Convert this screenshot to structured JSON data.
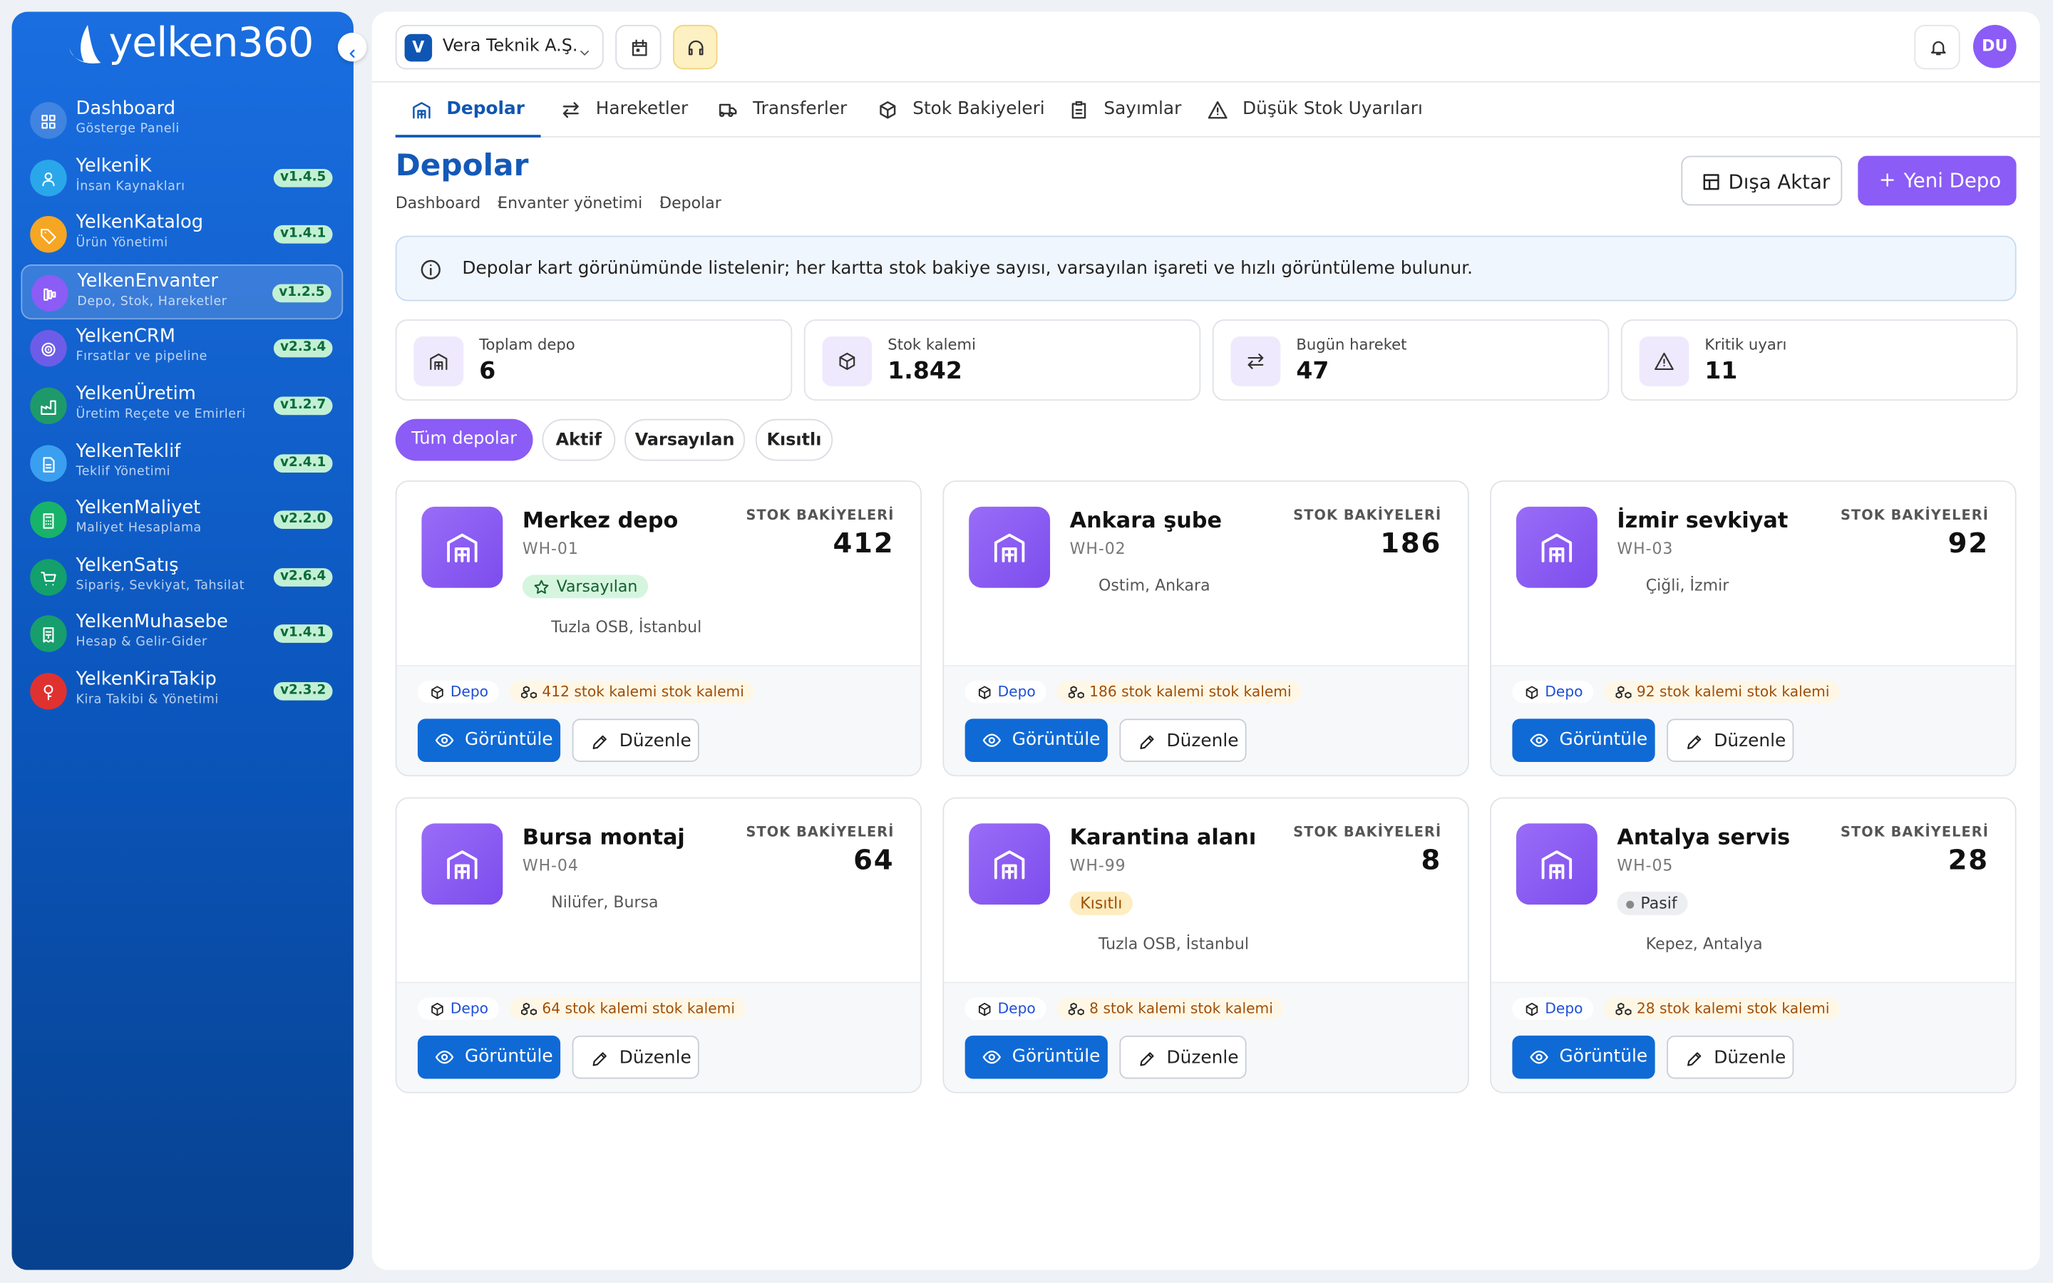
{
  "sidebar": {
    "logo": "yelken360",
    "apps": [
      {
        "name": "Dashboard",
        "subtitle": "Gösterge Paneli"
      },
      {
        "name": "YelkenİK",
        "subtitle": "İnsan Kaynakları",
        "version": "v1.4.5"
      },
      {
        "name": "YelkenKatalog",
        "subtitle": "Ürün Yönetimi",
        "version": "v1.4.1"
      },
      {
        "name": "YelkenEnvanter",
        "subtitle": "Depo, Stok, Hareketler",
        "version": "v1.2.5"
      },
      {
        "name": "YelkenCRM",
        "subtitle": "Fırsatlar ve pipeline",
        "version": "v2.3.4"
      },
      {
        "name": "YelkenÜretim",
        "subtitle": "Üretim Reçete ve Emirleri",
        "version": "v1.2.7"
      },
      {
        "name": "YelkenTeklif",
        "subtitle": "Teklif Yönetimi",
        "version": "v2.4.1"
      },
      {
        "name": "YelkenMaliyet",
        "subtitle": "Maliyet Hesaplama",
        "version": "v2.2.0"
      },
      {
        "name": "YelkenSatış",
        "subtitle": "Sipariş, Sevkiyat, Tahsilat",
        "version": "v2.6.4"
      },
      {
        "name": "YelkenMuhasebe",
        "subtitle": "Hesap & Gelir-Gider",
        "version": "v1.4.1"
      },
      {
        "name": "YelkenKiraTakip",
        "subtitle": "Kira Takibi & Yönetimi",
        "version": "v2.3.2"
      }
    ]
  },
  "topbar": {
    "company_initial": "V",
    "company": "Vera Teknik A.Ş.",
    "user_initials": "DU"
  },
  "tabs": [
    "Depolar",
    "Hareketler",
    "Transferler",
    "Stok Bakiyeleri",
    "Sayımlar",
    "Düşük Stok Uyarıları"
  ],
  "header": {
    "title": "Depolar",
    "breadcrumb": [
      "Dashboard",
      "Envanter yönetimi",
      "Depolar"
    ],
    "actions": [
      "Dışa Aktar",
      "Yeni Depo"
    ],
    "info": "Depolar kart görünümünde listelenir; her kartta stok bakiye sayısı, varsayılan işareti ve hızlı görüntüleme bulunur."
  },
  "stats": [
    {
      "label": "Toplam depo",
      "value": "6"
    },
    {
      "label": "Stok kalemi",
      "value": "1.842"
    },
    {
      "label": "Bugün hareket",
      "value": "47"
    },
    {
      "label": "Kritik uyarı",
      "value": "11"
    }
  ],
  "filters": [
    "Tüm depolar",
    "Aktif",
    "Varsayılan",
    "Kısıtlı"
  ],
  "card_labels": {
    "stock_title": "STOK BAKİYELERİ",
    "type": "Depo",
    "view": "Görüntüle",
    "edit": "Düzenle"
  },
  "warehouses": [
    {
      "name": "Merkez depo",
      "code": "WH-01",
      "badge": "Varsayılan",
      "location": "Tuzla OSB, İstanbul",
      "stock": "412",
      "stock_note": "412 stok kalemi stok kalemi"
    },
    {
      "name": "Ankara şube",
      "code": "WH-02",
      "location": "Ostim, Ankara",
      "stock": "186",
      "stock_note": "186 stok kalemi stok kalemi"
    },
    {
      "name": "İzmir sevkiyat",
      "code": "WH-03",
      "location": "Çiğli, İzmir",
      "stock": "92",
      "stock_note": "92 stok kalemi stok kalemi"
    },
    {
      "name": "Bursa montaj",
      "code": "WH-04",
      "location": "Nilüfer, Bursa",
      "stock": "64",
      "stock_note": "64 stok kalemi stok kalemi"
    },
    {
      "name": "Karantina alanı",
      "code": "WH-99",
      "badge": "Kısıtlı",
      "location": "Tuzla OSB, İstanbul",
      "stock": "8",
      "stock_note": "8 stok kalemi stok kalemi"
    },
    {
      "name": "Antalya servis",
      "code": "WH-05",
      "badge": "Pasif",
      "location": "Kepez, Antalya",
      "stock": "28",
      "stock_note": "28 stok kalemi stok kalemi"
    }
  ]
}
